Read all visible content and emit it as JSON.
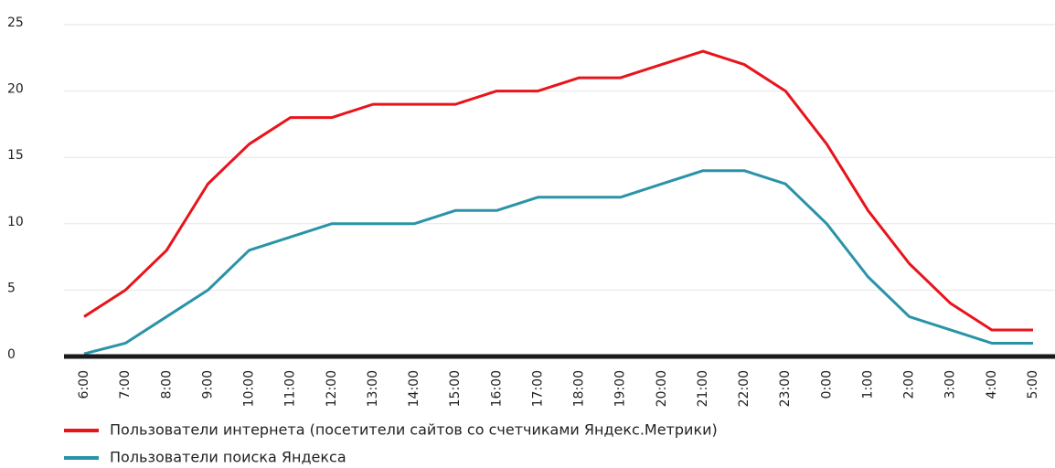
{
  "chart_data": {
    "type": "line",
    "categories": [
      "6:00",
      "7:00",
      "8:00",
      "9:00",
      "10:00",
      "11:00",
      "12:00",
      "13:00",
      "14:00",
      "15:00",
      "16:00",
      "17:00",
      "18:00",
      "19:00",
      "20:00",
      "21:00",
      "22:00",
      "23:00",
      "0:00",
      "1:00",
      "2:00",
      "3:00",
      "4:00",
      "5:00"
    ],
    "series": [
      {
        "name": "Пользователи интернета (посетители сайтов со счетчиками Яндекс.Метрики)",
        "color": "#e8141b",
        "values": [
          3,
          5,
          8,
          13,
          16,
          18,
          18,
          19,
          19,
          19,
          20,
          20,
          21,
          21,
          22,
          23,
          22,
          20,
          16,
          11,
          7,
          4,
          2,
          2
        ]
      },
      {
        "name": "Пользователи поиска Яндекса",
        "color": "#2a93a8",
        "values": [
          0.2,
          1,
          3,
          5,
          8,
          9,
          10,
          10,
          10,
          11,
          11,
          12,
          12,
          12,
          13,
          14,
          14,
          13,
          10,
          6,
          3,
          2,
          1,
          1
        ]
      }
    ],
    "ylim": [
      0,
      25
    ],
    "yticks": [
      0,
      5,
      10,
      15,
      20,
      25
    ],
    "grid": true
  }
}
